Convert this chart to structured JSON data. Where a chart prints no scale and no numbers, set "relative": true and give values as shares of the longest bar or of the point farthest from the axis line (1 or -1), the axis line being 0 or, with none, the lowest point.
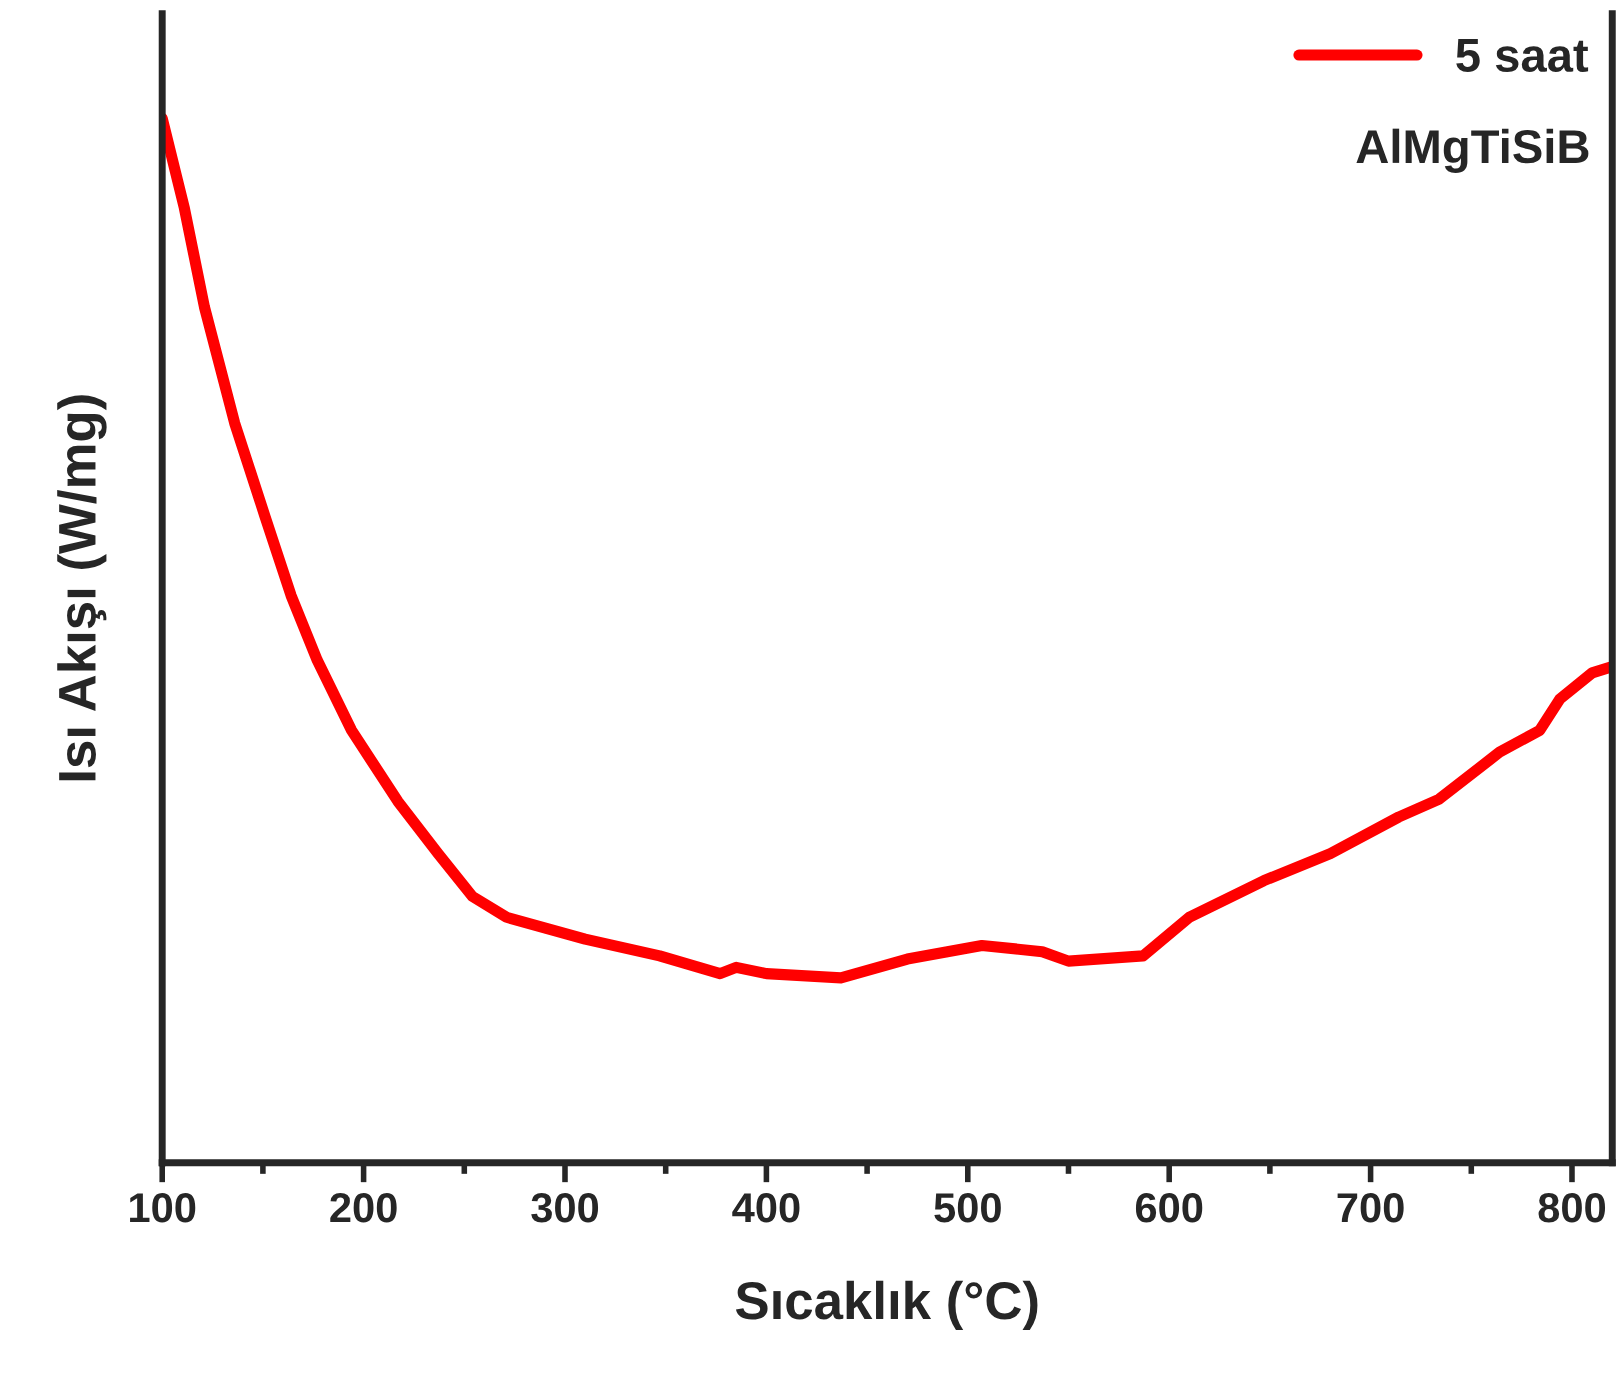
{
  "chart_data": {
    "type": "line",
    "relative": true,
    "xlabel": "Sıcaklık (°C)",
    "ylabel": "Isı Akışı (W/mg)",
    "xlim": [
      100,
      820
    ],
    "xticks": [
      100,
      200,
      300,
      400,
      500,
      600,
      700,
      800
    ],
    "tick_labels": "x",
    "legend": "top right",
    "annotations": [
      "AlMgTiSiB"
    ],
    "series": [
      {
        "name": "5 saat",
        "color": "#ff0000",
        "x": [
          100,
          111,
          121,
          136,
          151,
          164,
          177,
          194,
          217,
          237,
          254,
          271,
          310,
          347,
          377,
          385,
          400,
          437,
          470,
          507,
          537,
          550,
          587,
          610,
          647,
          680,
          714,
          734,
          764,
          784,
          794,
          810,
          820
        ],
        "values": [
          1.0,
          0.914,
          0.819,
          0.708,
          0.619,
          0.543,
          0.481,
          0.414,
          0.346,
          0.296,
          0.255,
          0.235,
          0.214,
          0.198,
          0.181,
          0.187,
          0.181,
          0.177,
          0.195,
          0.208,
          0.202,
          0.193,
          0.198,
          0.235,
          0.27,
          0.296,
          0.331,
          0.348,
          0.393,
          0.414,
          0.444,
          0.469,
          0.475
        ]
      }
    ]
  }
}
